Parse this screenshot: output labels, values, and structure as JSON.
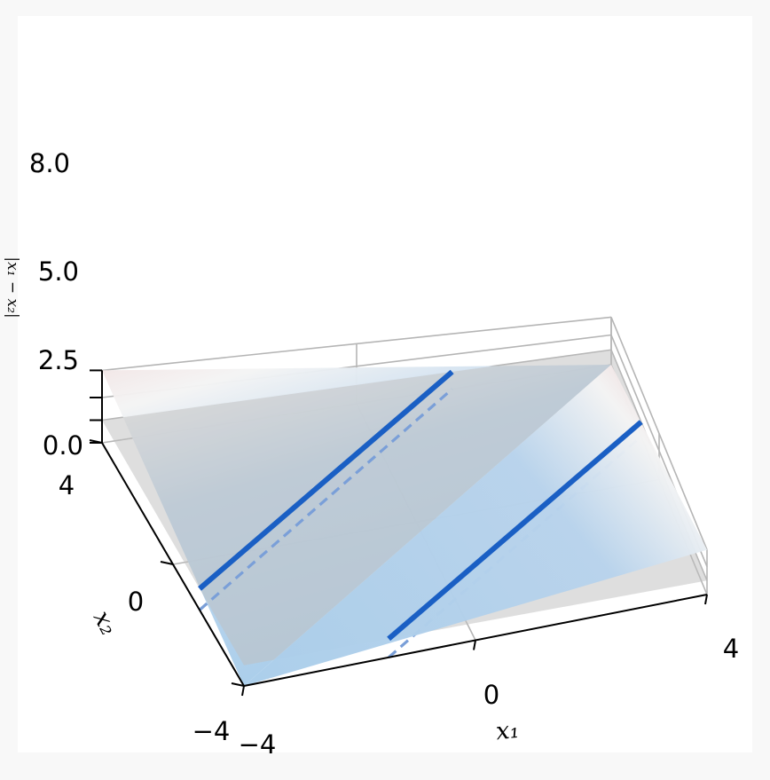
{
  "chart_data": {
    "type": "surface",
    "function": "|x1 - x2|",
    "title": "",
    "xlabel": "x₁",
    "ylabel": "x₂",
    "zlabel": "|x₁ − x₂|",
    "xlim": [
      -4,
      4
    ],
    "ylim": [
      -4,
      4
    ],
    "zlim": [
      0,
      8
    ],
    "x_ticks": [
      "−4",
      "0",
      "4"
    ],
    "y_ticks": [
      "−4",
      "0",
      "4"
    ],
    "z_ticks": [
      "0.0",
      "2.5",
      "5.0",
      "8.0"
    ],
    "surface_samples": {
      "x1": [
        -4,
        -4,
        4,
        4,
        0
      ],
      "x2": [
        -4,
        4,
        -4,
        4,
        0
      ],
      "z": [
        0,
        8,
        8,
        0,
        0
      ]
    },
    "level_plane": {
      "z": 2.5,
      "color": "#bfbfbf"
    },
    "level_set_lines": [
      {
        "equation": "x2 = x1 + 2.5",
        "z": 2.5,
        "color": "#1a5fc4"
      },
      {
        "equation": "x2 = x1 - 2.5",
        "z": 2.5,
        "color": "#1a5fc4"
      }
    ],
    "projected_lines": [
      {
        "equation": "x2 = x1 + 2.5",
        "z": 0,
        "color": "#7a9fd8",
        "style": "dashed"
      },
      {
        "equation": "x2 = x1 - 2.5",
        "z": 0,
        "color": "#7a9fd8",
        "style": "dashed"
      }
    ],
    "colormap": {
      "low": "#a9cdea",
      "mid": "#f4f4f4",
      "high": "#e8a6a6"
    },
    "grid": true
  }
}
